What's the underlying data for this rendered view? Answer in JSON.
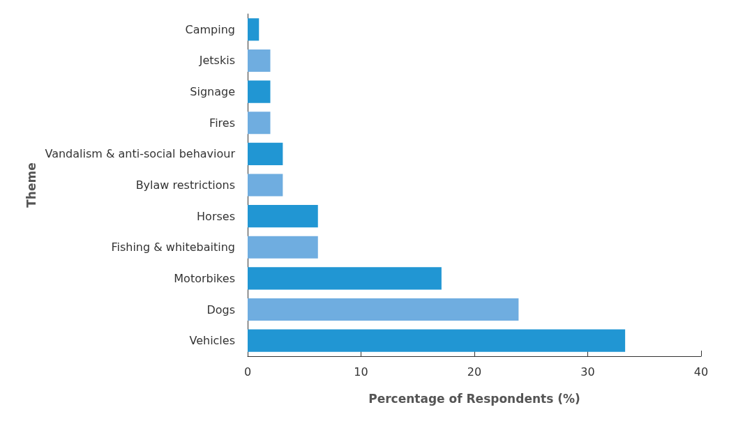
{
  "chart_data": {
    "type": "bar",
    "orientation": "horizontal",
    "xlabel": "Percentage of Respondents (%)",
    "ylabel": "Theme",
    "categories": [
      "Camping",
      "Jetskis",
      "Signage",
      "Fires",
      "Vandalism & anti-social behaviour",
      "Bylaw restrictions",
      "Horses",
      "Fishing & whitebaiting",
      "Motorbikes",
      "Dogs",
      "Vehicles"
    ],
    "values": [
      1.0,
      2.0,
      2.0,
      2.0,
      3.1,
      3.1,
      6.2,
      6.2,
      17.1,
      23.9,
      33.3
    ],
    "colors": [
      "#2196d3",
      "#6fade0",
      "#2196d3",
      "#6fade0",
      "#2196d3",
      "#6fade0",
      "#2196d3",
      "#6fade0",
      "#2196d3",
      "#6fade0",
      "#2196d3"
    ],
    "xlim": [
      0,
      40
    ],
    "xticks": [
      0,
      10,
      20,
      30,
      40
    ],
    "grid": false
  }
}
